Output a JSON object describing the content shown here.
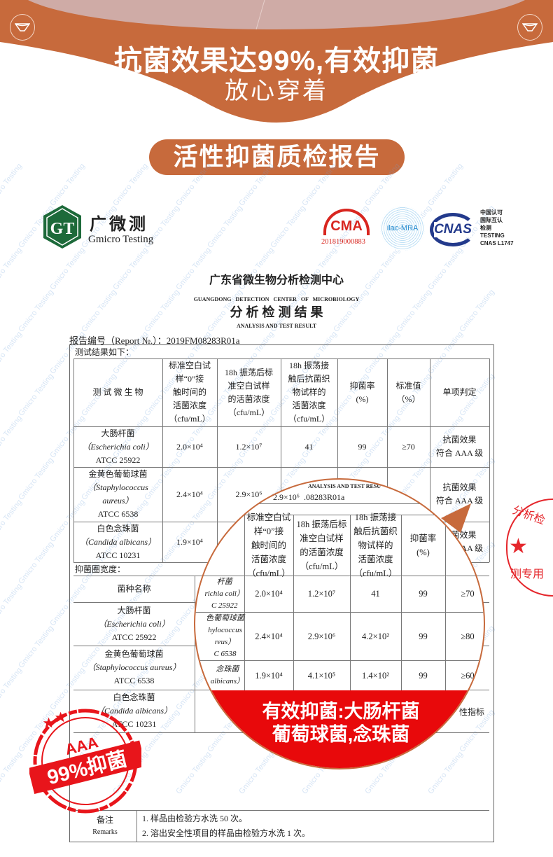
{
  "banner": {
    "headline": "抗菌效果达99%,有效抑菌",
    "subline": "放心穿着",
    "icon_left": "underwear-icon",
    "icon_right": "underwear-icon",
    "accent_color": "#c76a3c"
  },
  "section_title": "活性抑菌质检报告",
  "watermark": "Gmicro Testing",
  "logo": {
    "mark": "GT",
    "name_cn": "广微测",
    "name_en": "Gmicro Testing"
  },
  "certs": {
    "cma": "CMA",
    "cma_code": "201819000883",
    "ilac": "ilac-MRA",
    "cnas": "CNAS",
    "cnas_lines": [
      "中国认可",
      "国际互认",
      "检测",
      "TESTING",
      "CNAS L1747"
    ]
  },
  "report": {
    "org_cn": "广东省微生物分析检测中心",
    "org_en": "GUANGDONG   DETECTION   CENTER   OF   MICROBIOLOGY",
    "title_cn": "分 析 检 测 结 果",
    "title_en": "ANALYSIS AND TEST RESULT",
    "report_no": "报告编号（Report №.）：2019FM08283R01a",
    "results_label": "测试结果如下：",
    "headers": [
      "测 试 微 生 物",
      "标准空白试\n样“0”接\n触时间的\n活菌浓度\n（cfu/mL）",
      "18h 振荡后标\n准空白试样\n的活菌浓度\n（cfu/mL）",
      "18h 振荡接\n触后抗菌织\n物试样的\n活菌浓度\n（cfu/mL）",
      "抑菌率\n(%)",
      "标准值\n（%）",
      "单项判定"
    ],
    "rows": [
      {
        "name": "大肠杆菌",
        "latin": "（Escherichia coli）",
        "strain": "ATCC 25922",
        "blank0": "2.0×10⁴",
        "blank18": "1.2×10⁷",
        "sample18": "41",
        "rate": "99",
        "standard": "≥70",
        "verdict": "抗菌效果\n符合 AAA 级"
      },
      {
        "name": "金黄色葡萄球菌",
        "latin": "（Staphylococcus\naureus）",
        "strain": "ATCC 6538",
        "blank0": "2.4×10⁴",
        "blank18": "2.9×10⁶",
        "sample18": "4.2×10²",
        "rate": "99",
        "standard": "≥80",
        "verdict": "抗菌效果\n符合 AAA 级"
      },
      {
        "name": "白色念珠菌",
        "latin": "（Candida albicans）",
        "strain": "ATCC 10231",
        "blank0": "1.9×10⁴",
        "blank18": "4.1×10⁵",
        "sample18": "1.4×10²",
        "rate": "99",
        "standard": "≥60",
        "verdict": "抗菌效果\n符合 AAA 级"
      }
    ],
    "zone_label": "抑菌圈宽度：",
    "zone_header": "菌种名称",
    "zone_rows": [
      {
        "name": "大肠杆菌",
        "latin": "（Escherichia coli）",
        "strain": "ATCC 25922"
      },
      {
        "name": "金黄色葡萄球菌",
        "latin": "（Staphylococcus aureus）",
        "strain": "ATCC 6538"
      },
      {
        "name": "白色念珠菌",
        "latin": "（Candida albicans）",
        "strain": "ATCC 10231"
      }
    ],
    "zone_partial": "性指标",
    "remarks_label_cn": "备注",
    "remarks_label_en": "Remarks",
    "remarks": [
      "1. 样品由检验方水洗 50 次。",
      "2. 溶出安全性项目的样品由检验方水洗 1 次。"
    ]
  },
  "magnifier": {
    "partial_title": "ANALYSIS AND TEST RESU",
    "partial_report": "2.9×10⁶  .08283R01a",
    "partial_names": [
      "杆菌\nrichia coli）\nC 25922",
      "色葡萄球菌\nhylococcus\nreus）\nC 6538",
      "念珠菌\nalbicans）"
    ],
    "callout_line1": "有效抑菌:大肠杆菌",
    "callout_line2": "葡萄球菌,念珠菌",
    "callout_color": "#e8090b"
  },
  "stamp": {
    "grade": "AAA",
    "claim": "99%抑菌",
    "color": "#e8151b"
  },
  "side_stamp": {
    "top": "分析检",
    "bottom": "测专用"
  }
}
